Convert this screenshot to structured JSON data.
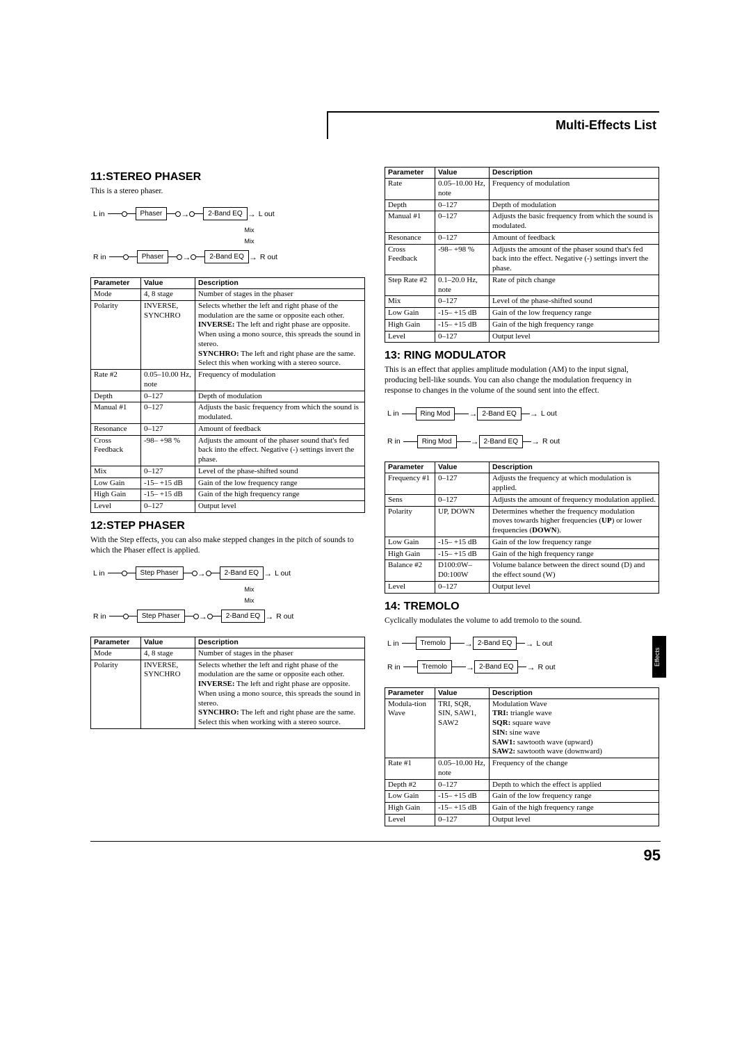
{
  "header": "Multi-Effects List",
  "page_number": "95",
  "side_tab": "Effects",
  "sections": {
    "s11": {
      "title": "11:STEREO PHASER",
      "intro": "This is a stereo phaser.",
      "diagram": {
        "l_in": "L in",
        "r_in": "R in",
        "l_out": "L out",
        "r_out": "R out",
        "box1": "Phaser",
        "box2": "2-Band EQ",
        "mix": "Mix"
      }
    },
    "s12": {
      "title": "12:STEP PHASER",
      "intro": "With the Step effects, you can also make stepped changes in the pitch of sounds to which the Phaser effect is applied.",
      "diagram": {
        "l_in": "L in",
        "r_in": "R in",
        "l_out": "L out",
        "r_out": "R out",
        "box1": "Step Phaser",
        "box2": "2-Band EQ",
        "mix": "Mix"
      }
    },
    "s13": {
      "title": "13: RING MODULATOR",
      "intro": "This is an effect that applies amplitude modulation (AM) to the input signal, producing bell-like sounds. You can also change the modulation frequency in response to changes in the volume of the sound sent into the effect.",
      "diagram": {
        "l_in": "L in",
        "r_in": "R in",
        "l_out": "L out",
        "r_out": "R out",
        "box1": "Ring Mod",
        "box2": "2-Band EQ"
      }
    },
    "s14": {
      "title": "14: TREMOLO",
      "intro": "Cyclically modulates the volume to add tremolo to the sound.",
      "diagram": {
        "l_in": "L in",
        "r_in": "R in",
        "l_out": "L out",
        "r_out": "R out",
        "box1": "Tremolo",
        "box2": "2-Band EQ"
      }
    }
  },
  "table_headers": {
    "p": "Parameter",
    "v": "Value",
    "d": "Description"
  },
  "t11": [
    {
      "p": "Mode",
      "v": "4, 8 stage",
      "d": "Number of stages in the phaser"
    },
    {
      "p": "Polarity",
      "v": "INVERSE, SYNCHRO",
      "d": "Selects whether the left and right phase of the modulation are the same or opposite each other.<br><b>INVERSE:</b> The left and right phase are opposite. When using a mono source, this spreads the sound in stereo.<br><b>SYNCHRO:</b> The left and right phase are the same. Select this when working with a stereo source."
    },
    {
      "p": "Rate #2",
      "v": "0.05–10.00 Hz, note",
      "d": "Frequency of modulation"
    },
    {
      "p": "Depth",
      "v": "0–127",
      "d": "Depth of modulation"
    },
    {
      "p": "Manual #1",
      "v": "0–127",
      "d": "Adjusts the basic frequency from which the sound is modulated."
    },
    {
      "p": "Resonance",
      "v": "0–127",
      "d": "Amount of feedback"
    },
    {
      "p": "Cross Feedback",
      "v": "-98– +98 %",
      "d": "Adjusts the amount of the phaser sound that's fed back into the effect. Negative (-) settings invert the phase."
    },
    {
      "p": "Mix",
      "v": "0–127",
      "d": "Level of the phase-shifted sound"
    },
    {
      "p": "Low Gain",
      "v": "-15– +15 dB",
      "d": "Gain of the low frequency range"
    },
    {
      "p": "High Gain",
      "v": "-15– +15 dB",
      "d": "Gain of the high frequency range"
    },
    {
      "p": "Level",
      "v": "0–127",
      "d": "Output level"
    }
  ],
  "t12a": [
    {
      "p": "Mode",
      "v": "4, 8 stage",
      "d": "Number of stages in the phaser"
    },
    {
      "p": "Polarity",
      "v": "INVERSE, SYNCHRO",
      "d": "Selects whether the left and right phase of the modulation are the same or opposite each other.<br><b>INVERSE:</b> The left and right phase are opposite. When using a mono source, this spreads the sound in stereo.<br><b>SYNCHRO:</b> The left and right phase are the same. Select this when working with a stereo source."
    }
  ],
  "t12b": [
    {
      "p": "Rate",
      "v": "0.05–10.00 Hz, note",
      "d": "Frequency of modulation"
    },
    {
      "p": "Depth",
      "v": "0–127",
      "d": "Depth of modulation"
    },
    {
      "p": "Manual #1",
      "v": "0–127",
      "d": "Adjusts the basic frequency from which the sound is modulated."
    },
    {
      "p": "Resonance",
      "v": "0–127",
      "d": "Amount of feedback"
    },
    {
      "p": "Cross Feedback",
      "v": "-98– +98 %",
      "d": "Adjusts the amount of the phaser sound that's fed back into the effect. Negative (-) settings invert the phase."
    },
    {
      "p": "Step Rate #2",
      "v": "0.1–20.0 Hz, note",
      "d": "Rate of pitch change"
    },
    {
      "p": "Mix",
      "v": "0–127",
      "d": "Level of the phase-shifted sound"
    },
    {
      "p": "Low Gain",
      "v": "-15– +15 dB",
      "d": "Gain of the low frequency range"
    },
    {
      "p": "High Gain",
      "v": "-15– +15 dB",
      "d": "Gain of the high frequency range"
    },
    {
      "p": "Level",
      "v": "0–127",
      "d": "Output level"
    }
  ],
  "t13": [
    {
      "p": "Frequency #1",
      "v": "0–127",
      "d": "Adjusts the frequency at which modulation is applied."
    },
    {
      "p": "Sens",
      "v": "0–127",
      "d": "Adjusts the amount of frequency modulation applied."
    },
    {
      "p": "Polarity",
      "v": "UP, DOWN",
      "d": "Determines whether the frequency modulation moves towards higher frequencies (<b>UP</b>) or lower frequencies (<b>DOWN</b>)."
    },
    {
      "p": "Low Gain",
      "v": "-15– +15 dB",
      "d": "Gain of the low frequency range"
    },
    {
      "p": "High Gain",
      "v": "-15– +15 dB",
      "d": "Gain of the high frequency range"
    },
    {
      "p": "Balance #2",
      "v": "D100:0W– D0:100W",
      "d": "Volume balance between the direct sound (D) and the effect sound (W)"
    },
    {
      "p": "Level",
      "v": "0–127",
      "d": "Output level"
    }
  ],
  "t14": [
    {
      "p": "Modula-tion Wave",
      "v": "TRI, SQR, SIN, SAW1, SAW2",
      "d": "Modulation Wave<br><b>TRI:</b> triangle wave<br><b>SQR:</b> square wave<br><b>SIN:</b> sine wave<br><b>SAW1:</b> sawtooth wave (upward)<br><b>SAW2:</b> sawtooth wave (downward)"
    },
    {
      "p": "Rate #1",
      "v": "0.05–10.00 Hz, note",
      "d": "Frequency of the change"
    },
    {
      "p": "Depth #2",
      "v": "0–127",
      "d": "Depth to which the effect is applied"
    },
    {
      "p": "Low Gain",
      "v": "-15– +15 dB",
      "d": "Gain of the low frequency range"
    },
    {
      "p": "High Gain",
      "v": "-15– +15 dB",
      "d": "Gain of the high frequency range"
    },
    {
      "p": "Level",
      "v": "0–127",
      "d": "Output level"
    }
  ]
}
